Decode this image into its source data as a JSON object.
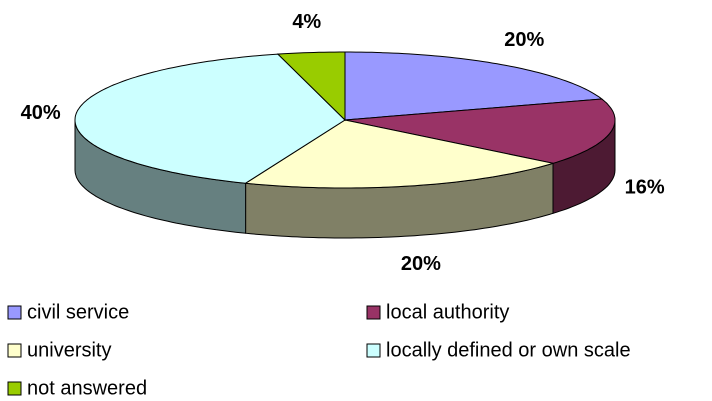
{
  "chart_data": {
    "type": "pie",
    "categories": [
      "civil service",
      "local authority",
      "university",
      "locally defined or own scale",
      "not answered"
    ],
    "values": [
      20,
      16,
      20,
      40,
      4
    ],
    "value_labels": [
      "20%",
      "16%",
      "20%",
      "40%",
      "4%"
    ],
    "colors": [
      "#9999ff",
      "#993366",
      "#ffffcc",
      "#ccffff",
      "#99cc00"
    ],
    "legend": "bottom"
  }
}
